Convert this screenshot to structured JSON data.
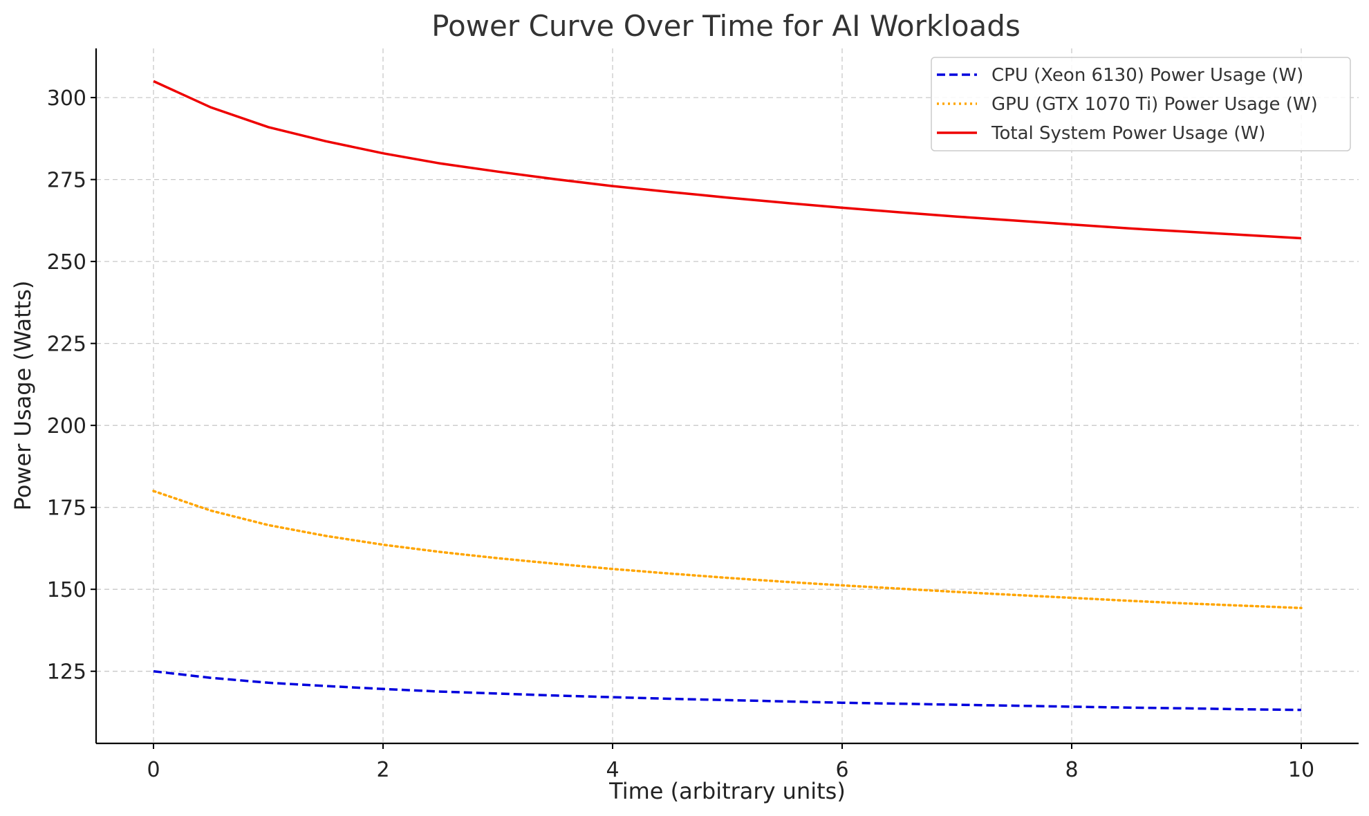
{
  "chart_data": {
    "type": "line",
    "title": "Power Curve Over Time for AI Workloads",
    "xlabel": "Time (arbitrary units)",
    "ylabel": "Power Usage (Watts)",
    "xlim": [
      -0.5,
      10.5
    ],
    "ylim": [
      103,
      315
    ],
    "xticks": [
      0,
      2,
      4,
      6,
      8,
      10
    ],
    "yticks": [
      125,
      150,
      175,
      200,
      225,
      250,
      275,
      300
    ],
    "grid": true,
    "legend_position": "top-right",
    "x": [
      0,
      0.5,
      1,
      1.5,
      2,
      2.5,
      3,
      3.5,
      4,
      4.5,
      5,
      5.5,
      6,
      6.5,
      7,
      7.5,
      8,
      8.5,
      9,
      9.5,
      10
    ],
    "series": [
      {
        "name": "CPU (Xeon 6130) Power Usage (W)",
        "color": "#0000dd",
        "style": "dashed",
        "values": [
          125,
          123.0,
          121.5,
          120.5,
          119.6,
          118.8,
          118.2,
          117.6,
          117.1,
          116.6,
          116.2,
          115.8,
          115.4,
          115.1,
          114.8,
          114.5,
          114.2,
          113.9,
          113.7,
          113.4,
          113.2
        ]
      },
      {
        "name": "GPU (GTX 1070 Ti) Power Usage (W)",
        "color": "#ffa500",
        "style": "dotted",
        "values": [
          180,
          174.0,
          169.6,
          166.3,
          163.6,
          161.4,
          159.5,
          157.8,
          156.2,
          154.8,
          153.5,
          152.3,
          151.2,
          150.2,
          149.2,
          148.3,
          147.4,
          146.5,
          145.7,
          145.0,
          144.3
        ]
      },
      {
        "name": "Total System Power Usage (W)",
        "color": "#ee0000",
        "style": "solid",
        "values": [
          305,
          297.0,
          291.0,
          286.7,
          283.0,
          279.9,
          277.4,
          275.1,
          273.0,
          271.2,
          269.5,
          267.9,
          266.4,
          265.0,
          263.7,
          262.5,
          261.3,
          260.1,
          259.1,
          258.1,
          257.1
        ]
      }
    ]
  }
}
